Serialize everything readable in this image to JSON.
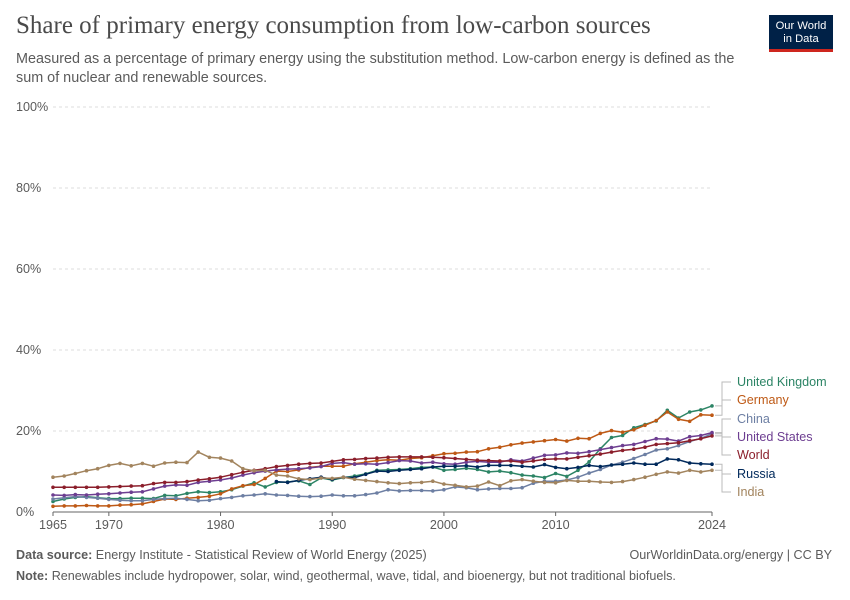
{
  "header": {
    "title": "Share of primary energy consumption from low-carbon sources",
    "subtitle": "Measured as a percentage of primary energy using the substitution method. Low-carbon energy is defined as the sum of nuclear and renewable sources.",
    "logo_line1": "Our World",
    "logo_line2": "in Data"
  },
  "footer": {
    "source_label": "Data source:",
    "source_text": "Energy Institute - Statistical Review of World Energy (2025)",
    "url_text": "OurWorldinData.org/energy | CC BY",
    "note_label": "Note:",
    "note_text": "Renewables include hydropower, solar, wind, geothermal, wave, tidal, and bioenergy, but not traditional biofuels."
  },
  "colors": {
    "United Kingdom": "#2c8465",
    "Germany": "#be5915",
    "China": "#6d7fa3",
    "United States": "#6d3e91",
    "World": "#8b1e2b",
    "Russia": "#00295b",
    "India": "#a2845e",
    "grid": "#dddddd",
    "axis": "#666666"
  },
  "chart_data": {
    "type": "line",
    "title": "Share of primary energy consumption from low-carbon sources",
    "x_ticks": [
      1965,
      1970,
      1980,
      1990,
      2000,
      2010,
      2024
    ],
    "y_ticks": [
      0,
      20,
      40,
      60,
      80,
      100
    ],
    "y_tick_labels": [
      "0%",
      "20%",
      "40%",
      "60%",
      "80%",
      "100%"
    ],
    "xlim": [
      1965,
      2024
    ],
    "ylim": [
      0,
      100
    ],
    "grid": "horizontal-dashed",
    "legend": "right-end-labels",
    "series": [
      {
        "name": "United Kingdom",
        "x_start": 1965,
        "values": [
          2.6,
          3.2,
          3.6,
          3.8,
          3.5,
          3.3,
          3.3,
          3.4,
          3.4,
          3.3,
          4.1,
          4.0,
          4.6,
          5.0,
          4.8,
          5.0,
          5.5,
          6.4,
          7.2,
          6.2,
          7.3,
          7.4,
          7.7,
          6.8,
          8.4,
          7.9,
          8.5,
          8.9,
          9.4,
          10.3,
          10.4,
          10.5,
          10.7,
          11.0,
          11.1,
          10.3,
          10.5,
          10.8,
          10.5,
          9.9,
          10.1,
          9.7,
          9.1,
          8.9,
          8.5,
          9.5,
          8.8,
          10.3,
          12.4,
          15.6,
          18.4,
          18.9,
          20.8,
          21.6,
          22.5,
          25.1,
          23.2,
          24.7,
          25.2,
          26.2
        ]
      },
      {
        "name": "Germany",
        "x_start": 1965,
        "values": [
          1.4,
          1.5,
          1.5,
          1.6,
          1.5,
          1.5,
          1.7,
          1.8,
          2.0,
          2.6,
          3.2,
          3.1,
          3.4,
          3.6,
          3.9,
          4.5,
          5.7,
          6.5,
          6.8,
          8.3,
          10.1,
          10.0,
          10.4,
          11.0,
          11.3,
          11.3,
          11.3,
          11.9,
          12.3,
          12.7,
          12.9,
          12.8,
          13.2,
          13.4,
          13.9,
          14.4,
          14.5,
          14.8,
          14.9,
          15.6,
          16.0,
          16.6,
          17.0,
          17.3,
          17.6,
          17.9,
          17.5,
          18.2,
          18.1,
          19.4,
          20.1,
          19.7,
          20.3,
          21.4,
          22.6,
          24.7,
          22.9,
          22.4,
          24.0,
          23.9
        ]
      },
      {
        "name": "China",
        "x_start": 1965,
        "values": [
          3.2,
          3.5,
          3.8,
          3.6,
          3.4,
          3.1,
          2.9,
          2.8,
          2.8,
          3.1,
          3.3,
          3.4,
          3.1,
          2.8,
          2.9,
          3.3,
          3.6,
          4.0,
          4.2,
          4.5,
          4.2,
          4.1,
          3.9,
          3.8,
          3.9,
          4.2,
          4.0,
          4.0,
          4.3,
          4.7,
          5.5,
          5.2,
          5.3,
          5.3,
          5.2,
          5.5,
          6.2,
          6.0,
          5.5,
          5.7,
          5.8,
          5.8,
          6.0,
          7.1,
          7.6,
          7.6,
          7.9,
          8.6,
          9.6,
          10.5,
          11.6,
          12.3,
          13.2,
          14.2,
          15.3,
          15.6,
          16.4,
          17.4,
          18.2,
          19.3
        ]
      },
      {
        "name": "United States",
        "x_start": 1965,
        "values": [
          4.2,
          4.1,
          4.3,
          4.2,
          4.4,
          4.5,
          4.7,
          4.9,
          5.0,
          5.7,
          6.4,
          6.7,
          6.6,
          7.3,
          7.6,
          7.9,
          8.4,
          9.1,
          9.7,
          10.1,
          10.4,
          10.6,
          10.7,
          10.9,
          11.2,
          12.0,
          12.2,
          11.8,
          11.9,
          11.8,
          12.2,
          12.7,
          12.6,
          12.1,
          12.3,
          11.9,
          11.8,
          12.3,
          12.5,
          12.3,
          12.3,
          12.9,
          12.6,
          13.3,
          14.0,
          14.1,
          14.6,
          14.5,
          14.9,
          15.4,
          15.9,
          16.4,
          16.7,
          17.4,
          18.1,
          18.0,
          17.5,
          18.6,
          18.9,
          19.6
        ]
      },
      {
        "name": "World",
        "x_start": 1965,
        "values": [
          6.1,
          6.1,
          6.1,
          6.1,
          6.1,
          6.2,
          6.3,
          6.4,
          6.5,
          7.0,
          7.3,
          7.3,
          7.5,
          7.9,
          8.2,
          8.6,
          9.2,
          9.8,
          10.3,
          10.7,
          11.2,
          11.5,
          11.8,
          12.0,
          12.1,
          12.5,
          12.9,
          13.0,
          13.2,
          13.3,
          13.5,
          13.6,
          13.6,
          13.6,
          13.5,
          13.4,
          13.2,
          13.0,
          12.8,
          12.7,
          12.6,
          12.6,
          12.3,
          12.6,
          13.0,
          13.1,
          13.1,
          13.5,
          13.9,
          14.3,
          14.8,
          15.2,
          15.5,
          16.0,
          16.7,
          16.9,
          17.1,
          17.6,
          18.1,
          18.8
        ]
      },
      {
        "name": "Russia",
        "x_start": 1985,
        "values": [
          7.5,
          7.3,
          7.8,
          8.2,
          8.6,
          8.1,
          8.6,
          8.5,
          9.3,
          10.1,
          10.0,
          10.3,
          10.5,
          10.7,
          11.1,
          11.3,
          11.3,
          11.4,
          11.1,
          11.5,
          11.5,
          11.5,
          11.3,
          11.1,
          11.7,
          11.0,
          10.7,
          11.0,
          11.5,
          11.2,
          11.6,
          11.8,
          12.1,
          11.8,
          11.8,
          13.1,
          12.9,
          12.1,
          11.9,
          11.8
        ]
      },
      {
        "name": "India",
        "x_start": 1965,
        "values": [
          8.6,
          8.9,
          9.5,
          10.2,
          10.7,
          11.5,
          12.0,
          11.4,
          12.0,
          11.3,
          12.1,
          12.3,
          12.2,
          14.8,
          13.5,
          13.3,
          12.6,
          10.7,
          10.2,
          10.3,
          9.1,
          8.9,
          8.2,
          8.0,
          8.4,
          8.3,
          8.6,
          8.1,
          7.8,
          7.5,
          7.2,
          7.0,
          7.2,
          7.3,
          7.6,
          6.9,
          6.6,
          6.2,
          6.4,
          7.4,
          6.5,
          7.7,
          8.0,
          7.6,
          7.3,
          7.2,
          7.8,
          7.6,
          7.6,
          7.4,
          7.3,
          7.5,
          8.0,
          8.6,
          9.3,
          9.9,
          9.6,
          10.3,
          9.9,
          10.3
        ]
      }
    ]
  }
}
